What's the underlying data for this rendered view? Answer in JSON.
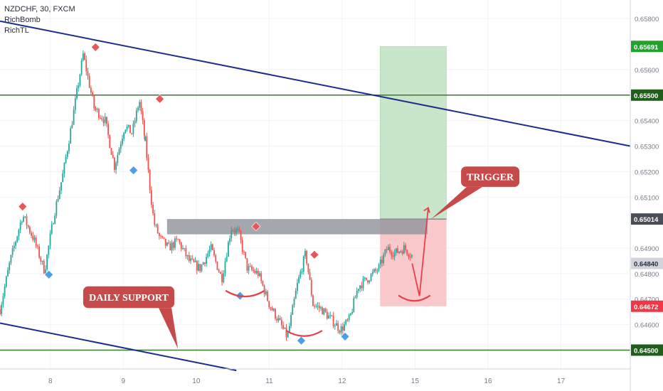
{
  "chart_data": {
    "type": "candlestick",
    "symbol_line": "NZDCHF, 30, FXCM",
    "indicators": [
      "RichBomb",
      "RichTL"
    ],
    "y_axis": {
      "ticks": [
        "0.65800",
        "0.65600",
        "0.65400",
        "0.65300",
        "0.65200",
        "0.65100",
        "0.64900",
        "0.64800",
        "0.64700",
        "0.64600"
      ],
      "tick_values": [
        0.658,
        0.656,
        0.654,
        0.653,
        0.652,
        0.651,
        0.649,
        0.648,
        0.647,
        0.646
      ],
      "ylim": [
        0.64426,
        0.65873
      ]
    },
    "x_axis": {
      "ticks": [
        "8",
        "9",
        "10",
        "11",
        "12",
        "15",
        "16",
        "17"
      ],
      "tick_positions": [
        1.0,
        2.0,
        3.0,
        4.0,
        5.0,
        6.0,
        7.0,
        8.0
      ],
      "xlim": [
        0.31,
        8.95
      ]
    },
    "price_badges": [
      {
        "label": "0.65691",
        "value": 0.65691,
        "color": "#22a22c"
      },
      {
        "label": "0.65500",
        "value": 0.655,
        "color": "#1f5f1a"
      },
      {
        "label": "0.65014",
        "value": 0.65014,
        "color": "#4a4e57"
      },
      {
        "label": "0.64840",
        "value": 0.6484,
        "color": "#d1d4dc",
        "text_color": "#2a2e39"
      },
      {
        "label": "0.64672",
        "value": 0.64672,
        "color": "#f23645"
      },
      {
        "label": "0.64500",
        "value": 0.645,
        "color": "#1f5f1a"
      }
    ],
    "horizontal_lines": [
      {
        "value": 0.655,
        "color": "#3a7a2e"
      },
      {
        "value": 0.645,
        "color": "#3a7a2e"
      }
    ],
    "trend_lines": [
      {
        "from": [
          0.31,
          0.6579
        ],
        "to": [
          8.95,
          0.653
        ],
        "color": "#1c2e8c"
      },
      {
        "from": [
          0.31,
          0.64606
        ],
        "to": [
          3.55,
          0.6442
        ],
        "color": "#1c2e8c"
      }
    ],
    "resistance_zone": {
      "x": [
        2.6,
        6.17
      ],
      "y": [
        0.64954,
        0.65014
      ],
      "color": "#9598a1"
    },
    "position": {
      "x": [
        5.52,
        6.43
      ],
      "entry": 0.65014,
      "target": 0.65691,
      "stop": 0.64672,
      "profit_color": "#c8e6c9",
      "loss_color": "#f8c8cb"
    },
    "close_segments": [
      {
        "x": [
          0.31,
          0.45,
          0.62,
          0.78,
          0.92,
          1.05,
          1.18,
          1.3,
          1.45,
          1.6,
          1.75,
          1.88,
          2.02,
          2.12,
          2.22,
          2.3
        ],
        "y": [
          0.6466,
          0.6485,
          0.6503,
          0.6493,
          0.6481,
          0.6503,
          0.652,
          0.654,
          0.6566,
          0.6545,
          0.654,
          0.6522,
          0.6538,
          0.6535,
          0.6548,
          0.6532
        ]
      },
      {
        "x": [
          2.3,
          2.36,
          2.42,
          2.5,
          2.62,
          2.75,
          2.9,
          3.05,
          3.2,
          3.35,
          3.48,
          3.58,
          3.7,
          3.85,
          4.0,
          4.12,
          4.25,
          4.38,
          4.5,
          4.6,
          4.72,
          4.85,
          4.98,
          5.1,
          5.22,
          5.35,
          5.5,
          5.62,
          5.72,
          5.85,
          5.96
        ],
        "y": [
          0.6532,
          0.6515,
          0.65,
          0.6494,
          0.649,
          0.6493,
          0.6485,
          0.6482,
          0.649,
          0.6478,
          0.6498,
          0.6496,
          0.6482,
          0.648,
          0.6468,
          0.6462,
          0.6455,
          0.6475,
          0.6488,
          0.6468,
          0.6466,
          0.6462,
          0.6458,
          0.6462,
          0.6475,
          0.6478,
          0.6482,
          0.649,
          0.6488,
          0.649,
          0.6487
        ]
      }
    ],
    "markers": [
      {
        "x": 0.62,
        "y": 0.65063,
        "type": "up",
        "color": "#e8555a"
      },
      {
        "x": 0.98,
        "y": 0.64796,
        "type": "down",
        "color": "#4a9fe8"
      },
      {
        "x": 1.62,
        "y": 0.65688,
        "type": "up",
        "color": "#e8555a"
      },
      {
        "x": 2.14,
        "y": 0.65205,
        "type": "down",
        "color": "#4a9fe8"
      },
      {
        "x": 2.5,
        "y": 0.65485,
        "type": "up",
        "color": "#e8555a"
      },
      {
        "x": 3.6,
        "y": 0.64713,
        "type": "down",
        "color": "#4a9fe8"
      },
      {
        "x": 3.82,
        "y": 0.64985,
        "type": "up",
        "color": "#e8555a"
      },
      {
        "x": 4.44,
        "y": 0.64537,
        "type": "down",
        "color": "#4a9fe8"
      },
      {
        "x": 4.62,
        "y": 0.64874,
        "type": "up",
        "color": "#e8555a"
      },
      {
        "x": 5.04,
        "y": 0.64553,
        "type": "down",
        "color": "#4a9fe8"
      }
    ],
    "arcs": [
      {
        "x": [
          3.41,
          3.93
        ],
        "y": 0.64732,
        "depth": 0.00022,
        "color": "#e8404a"
      },
      {
        "x": 4.24,
        "x2": 4.72,
        "y": 0.64575,
        "depth": 0.0002,
        "color": "#e8404a"
      },
      {
        "x": [
          5.78,
          6.2
        ],
        "y": 0.64713,
        "depth": 0.0002,
        "color": "#e8404a"
      }
    ],
    "projection_path": {
      "x": [
        5.96,
        6.06,
        6.18
      ],
      "y": [
        0.6484,
        0.64712,
        0.65058
      ],
      "color": "#e8404a"
    },
    "annotations": [
      {
        "text": "TRIGGER",
        "x": [
          6.63,
          7.43
        ],
        "y": [
          0.6522,
          0.6514
        ],
        "pointer": [
          6.22,
          0.65014
        ],
        "color": "#c64a4a"
      },
      {
        "text": "DAILY SUPPORT",
        "x": [
          1.45,
          2.7
        ],
        "y": [
          0.6475,
          0.64665
        ],
        "pointer": [
          2.75,
          0.64505
        ],
        "color": "#c64a4a"
      }
    ]
  }
}
